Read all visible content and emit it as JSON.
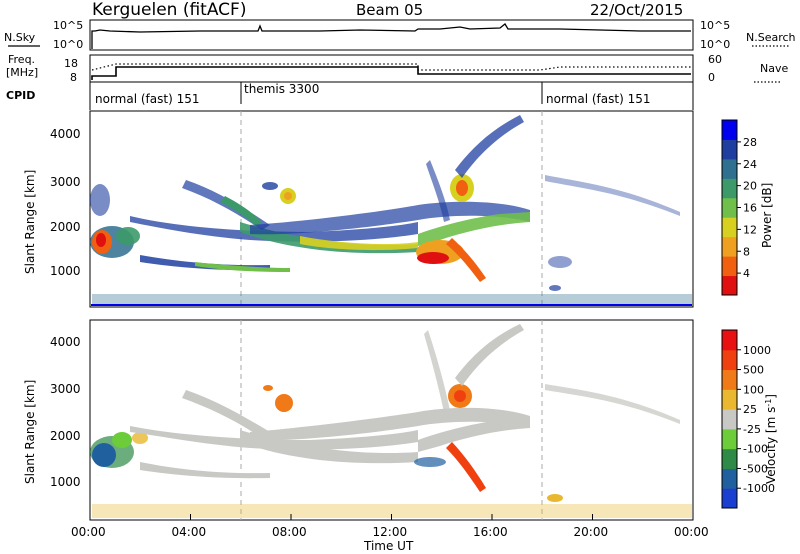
{
  "header": {
    "station": "Kerguelen (fitACF)",
    "beam": "Beam 05",
    "date": "22/Oct/2015"
  },
  "strips": {
    "nsky": {
      "label": "N.Sky",
      "ticks": [
        "10^5",
        "10^0"
      ]
    },
    "nsearch": {
      "label": "N.Search",
      "ticks": [
        "10^5",
        "10^0"
      ]
    },
    "freq": {
      "label_line1": "Freq.",
      "label_line2": "[MHz]",
      "ticks": [
        "18",
        "8"
      ]
    },
    "nave": {
      "label": "Nave",
      "ticks": [
        "60",
        "0"
      ]
    },
    "cpid": {
      "label": "CPID",
      "segments": [
        {
          "name": "normal (fast) 151",
          "start_h": 0,
          "end_h": 6
        },
        {
          "name": "themis 3300",
          "start_h": 6,
          "end_h": 18
        },
        {
          "name": "normal (fast) 151",
          "start_h": 18,
          "end_h": 24
        }
      ]
    }
  },
  "colors": {
    "power": [
      "#0000ee",
      "#1f3fa0",
      "#2f6f8f",
      "#3c9a6a",
      "#6fbf4a",
      "#d8d020",
      "#f0a020",
      "#f06010",
      "#e01010"
    ],
    "velocity": [
      "#1a3ecf",
      "#20609f",
      "#2e8a46",
      "#6ccc3a",
      "#c8c8c4",
      "#e9b830",
      "#f07a18",
      "#f04010",
      "#e81010"
    ]
  },
  "chart_data": [
    {
      "type": "heatmap",
      "name": "power",
      "ylabel": "Slant Range [km]",
      "xlabel": "",
      "yticks": [
        "4000",
        "3000",
        "2000",
        "1000"
      ],
      "ylim": [
        200,
        4500
      ],
      "xlim_hours": [
        0,
        24
      ],
      "colorbar_label": "Power [dB]",
      "colorbar_ticks": [
        "28",
        "24",
        "20",
        "16",
        "12",
        "8",
        "4"
      ]
    },
    {
      "type": "heatmap",
      "name": "velocity",
      "ylabel": "Slant Range [km]",
      "xlabel": "Time UT",
      "xticks": [
        "00:00",
        "04:00",
        "08:00",
        "12:00",
        "16:00",
        "20:00",
        "00:00"
      ],
      "yticks": [
        "4000",
        "3000",
        "2000",
        "1000"
      ],
      "ylim": [
        200,
        4500
      ],
      "xlim_hours": [
        0,
        24
      ],
      "colorbar_label": "Velocity [m s^-1]",
      "colorbar_ticks": [
        "1000",
        "500",
        "100",
        "25",
        "-25",
        "-100",
        "-500",
        "-1000"
      ]
    }
  ]
}
